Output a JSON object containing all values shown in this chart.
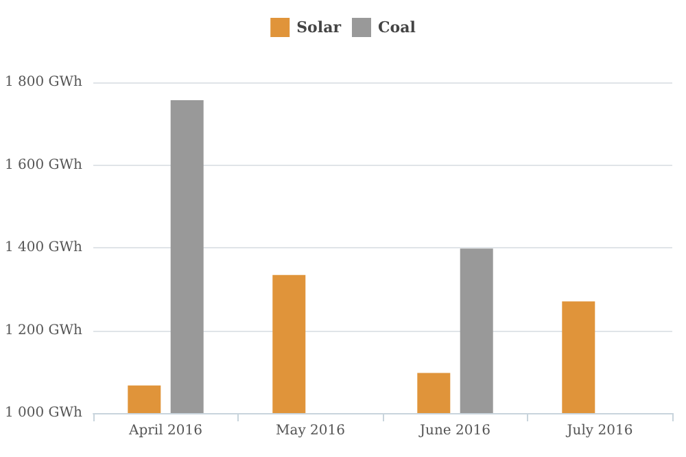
{
  "chart_data": {
    "type": "bar",
    "categories": [
      "April 2016",
      "May 2016",
      "June 2016",
      "July 2016"
    ],
    "series": [
      {
        "name": "Solar",
        "color": "#e0943a",
        "values": [
          1067,
          1334,
          1097,
          1270
        ]
      },
      {
        "name": "Coal",
        "color": "#999999",
        "values": [
          1757,
          null,
          1398,
          null
        ]
      }
    ],
    "ylim": [
      1000,
      1800
    ],
    "yticks": [
      {
        "value": 1000,
        "label": "1 000 GWh"
      },
      {
        "value": 1200,
        "label": "1 200 GWh"
      },
      {
        "value": 1400,
        "label": "1 400 GWh"
      },
      {
        "value": 1600,
        "label": "1 600 GWh"
      },
      {
        "value": 1800,
        "label": "1 800 GWh"
      }
    ],
    "grid": "y",
    "legend": "top"
  }
}
